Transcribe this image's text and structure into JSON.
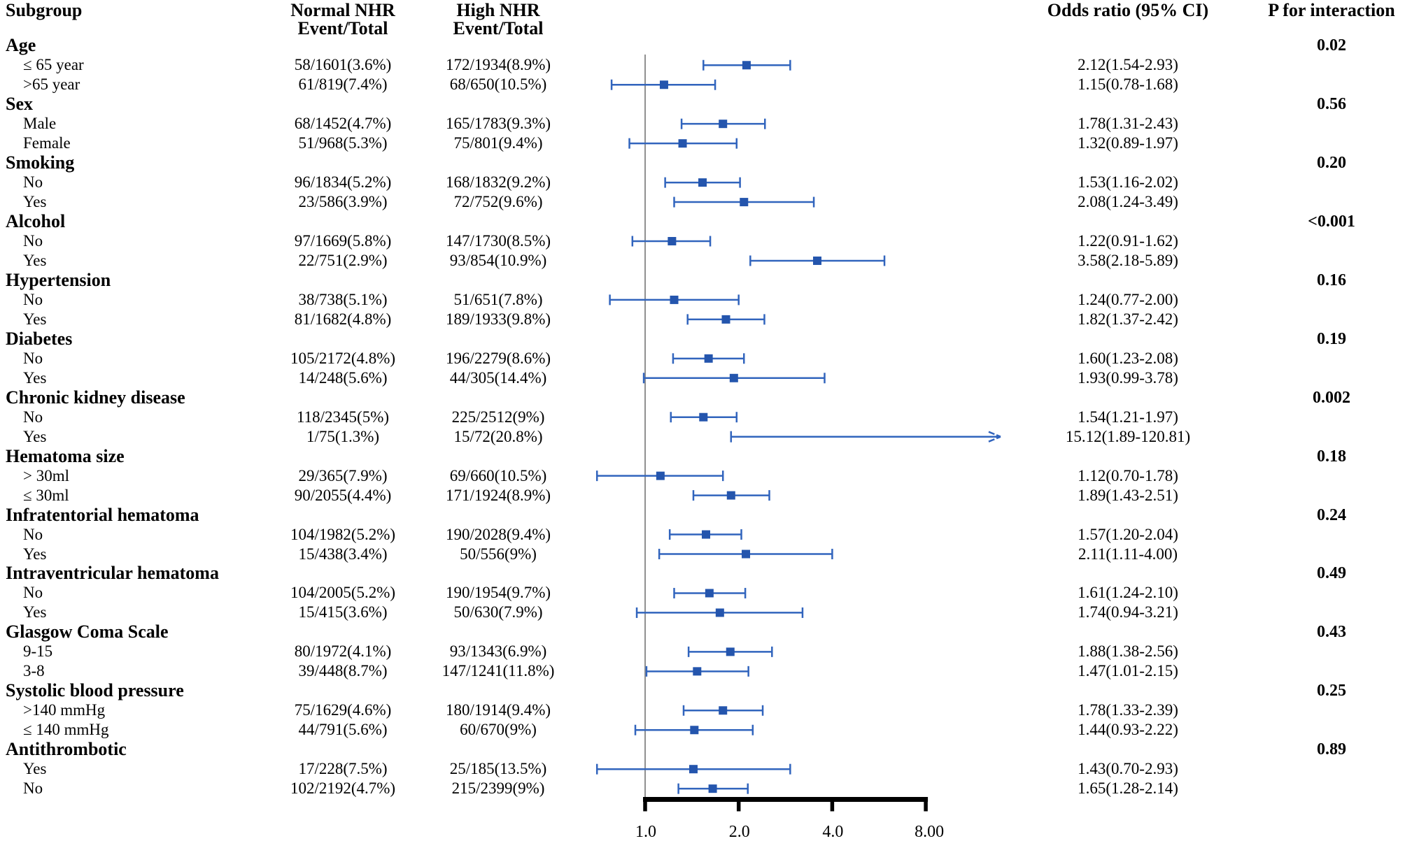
{
  "columns": {
    "subgroup": "Subgroup",
    "normal_line1": "Normal NHR",
    "normal_line2": "Event/Total",
    "high_line1": "High NHR",
    "high_line2": "Event/Total",
    "or": "Odds ratio (95% CI)",
    "p": "P for interaction"
  },
  "colors": {
    "marker": "#2455ad",
    "line": "#3164bd",
    "ref_line": "#909090",
    "axis": "#000000",
    "text": "#000000"
  },
  "chart_data": {
    "type": "forest",
    "x_axis": {
      "scale": "log2",
      "ticks": [
        1.0,
        2.0,
        4.0,
        8.0
      ],
      "tick_labels": [
        "1.0",
        "2.0",
        "4.0",
        "8.00"
      ],
      "ref_line": 1.0,
      "range": [
        1.0,
        8.0
      ]
    },
    "groups": [
      {
        "label": "Age",
        "p": "0.02",
        "items": [
          {
            "label": "≤ 65 year",
            "normal": "58/1601(3.6%)",
            "high": "172/1934(8.9%)",
            "or": 2.12,
            "lo": 1.54,
            "hi": 2.93,
            "or_text": "2.12(1.54-2.93)"
          },
          {
            "label": ">65 year",
            "normal": "61/819(7.4%)",
            "high": "68/650(10.5%)",
            "or": 1.15,
            "lo": 0.78,
            "hi": 1.68,
            "or_text": "1.15(0.78-1.68)"
          }
        ]
      },
      {
        "label": "Sex",
        "p": "0.56",
        "items": [
          {
            "label": "Male",
            "normal": "68/1452(4.7%)",
            "high": "165/1783(9.3%)",
            "or": 1.78,
            "lo": 1.31,
            "hi": 2.43,
            "or_text": "1.78(1.31-2.43)"
          },
          {
            "label": "Female",
            "normal": "51/968(5.3%)",
            "high": "75/801(9.4%)",
            "or": 1.32,
            "lo": 0.89,
            "hi": 1.97,
            "or_text": "1.32(0.89-1.97)"
          }
        ]
      },
      {
        "label": "Smoking",
        "p": "0.20",
        "items": [
          {
            "label": "No",
            "normal": "96/1834(5.2%)",
            "high": "168/1832(9.2%)",
            "or": 1.53,
            "lo": 1.16,
            "hi": 2.02,
            "or_text": "1.53(1.16-2.02)"
          },
          {
            "label": "Yes",
            "normal": "23/586(3.9%)",
            "high": "72/752(9.6%)",
            "or": 2.08,
            "lo": 1.24,
            "hi": 3.49,
            "or_text": "2.08(1.24-3.49)"
          }
        ]
      },
      {
        "label": "Alcohol",
        "p": "<0.001",
        "items": [
          {
            "label": "No",
            "normal": "97/1669(5.8%)",
            "high": "147/1730(8.5%)",
            "or": 1.22,
            "lo": 0.91,
            "hi": 1.62,
            "or_text": "1.22(0.91-1.62)"
          },
          {
            "label": "Yes",
            "normal": "22/751(2.9%)",
            "high": "93/854(10.9%)",
            "or": 3.58,
            "lo": 2.18,
            "hi": 5.89,
            "or_text": "3.58(2.18-5.89)"
          }
        ]
      },
      {
        "label": "Hypertension",
        "p": "0.16",
        "items": [
          {
            "label": "No",
            "normal": "38/738(5.1%)",
            "high": "51/651(7.8%)",
            "or": 1.24,
            "lo": 0.77,
            "hi": 2.0,
            "or_text": "1.24(0.77-2.00)"
          },
          {
            "label": "Yes",
            "normal": "81/1682(4.8%)",
            "high": "189/1933(9.8%)",
            "or": 1.82,
            "lo": 1.37,
            "hi": 2.42,
            "or_text": "1.82(1.37-2.42)"
          }
        ]
      },
      {
        "label": "Diabetes",
        "p": "0.19",
        "items": [
          {
            "label": "No",
            "normal": "105/2172(4.8%)",
            "high": "196/2279(8.6%)",
            "or": 1.6,
            "lo": 1.23,
            "hi": 2.08,
            "or_text": "1.60(1.23-2.08)"
          },
          {
            "label": "Yes",
            "normal": "14/248(5.6%)",
            "high": "44/305(14.4%)",
            "or": 1.93,
            "lo": 0.99,
            "hi": 3.78,
            "or_text": "1.93(0.99-3.78)"
          }
        ]
      },
      {
        "label": "Chronic kidney disease",
        "p": "0.002",
        "items": [
          {
            "label": "No",
            "normal": "118/2345(5%)",
            "high": "225/2512(9%)",
            "or": 1.54,
            "lo": 1.21,
            "hi": 1.97,
            "or_text": "1.54(1.21-1.97)"
          },
          {
            "label": "Yes",
            "normal": "1/75(1.3%)",
            "high": "15/72(20.8%)",
            "or": 15.12,
            "lo": 1.89,
            "hi": 120.81,
            "or_text": "15.12(1.89-120.81)",
            "arrow": true
          }
        ]
      },
      {
        "label": "Hematoma size",
        "p": "0.18",
        "items": [
          {
            "label": "> 30ml",
            "normal": "29/365(7.9%)",
            "high": "69/660(10.5%)",
            "or": 1.12,
            "lo": 0.7,
            "hi": 1.78,
            "or_text": "1.12(0.70-1.78)"
          },
          {
            "label": "≤ 30ml",
            "normal": "90/2055(4.4%)",
            "high": "171/1924(8.9%)",
            "or": 1.89,
            "lo": 1.43,
            "hi": 2.51,
            "or_text": "1.89(1.43-2.51)"
          }
        ]
      },
      {
        "label": "Infratentorial hematoma",
        "p": "0.24",
        "items": [
          {
            "label": "No",
            "normal": "104/1982(5.2%)",
            "high": "190/2028(9.4%)",
            "or": 1.57,
            "lo": 1.2,
            "hi": 2.04,
            "or_text": "1.57(1.20-2.04)"
          },
          {
            "label": "Yes",
            "normal": "15/438(3.4%)",
            "high": "50/556(9%)",
            "or": 2.11,
            "lo": 1.11,
            "hi": 4.0,
            "or_text": "2.11(1.11-4.00)"
          }
        ]
      },
      {
        "label": "Intraventricular hematoma",
        "p": "0.49",
        "items": [
          {
            "label": "No",
            "normal": "104/2005(5.2%)",
            "high": "190/1954(9.7%)",
            "or": 1.61,
            "lo": 1.24,
            "hi": 2.1,
            "or_text": "1.61(1.24-2.10)"
          },
          {
            "label": "Yes",
            "normal": "15/415(3.6%)",
            "high": "50/630(7.9%)",
            "or": 1.74,
            "lo": 0.94,
            "hi": 3.21,
            "or_text": "1.74(0.94-3.21)"
          }
        ]
      },
      {
        "label": "Glasgow Coma Scale",
        "p": "0.43",
        "items": [
          {
            "label": "9-15",
            "normal": "80/1972(4.1%)",
            "high": "93/1343(6.9%)",
            "or": 1.88,
            "lo": 1.38,
            "hi": 2.56,
            "or_text": "1.88(1.38-2.56)"
          },
          {
            "label": "3-8",
            "normal": "39/448(8.7%)",
            "high": "147/1241(11.8%)",
            "or": 1.47,
            "lo": 1.01,
            "hi": 2.15,
            "or_text": "1.47(1.01-2.15)"
          }
        ]
      },
      {
        "label": "Systolic blood pressure",
        "p": "0.25",
        "items": [
          {
            "label": ">140 mmHg",
            "normal": "75/1629(4.6%)",
            "high": "180/1914(9.4%)",
            "or": 1.78,
            "lo": 1.33,
            "hi": 2.39,
            "or_text": "1.78(1.33-2.39)"
          },
          {
            "label": "≤ 140 mmHg",
            "normal": "44/791(5.6%)",
            "high": "60/670(9%)",
            "or": 1.44,
            "lo": 0.93,
            "hi": 2.22,
            "or_text": "1.44(0.93-2.22)"
          }
        ]
      },
      {
        "label": "Antithrombotic",
        "p": "0.89",
        "items": [
          {
            "label": "Yes",
            "normal": "17/228(7.5%)",
            "high": "25/185(13.5%)",
            "or": 1.43,
            "lo": 0.7,
            "hi": 2.93,
            "or_text": "1.43(0.70-2.93)"
          },
          {
            "label": "No",
            "normal": "102/2192(4.7%)",
            "high": "215/2399(9%)",
            "or": 1.65,
            "lo": 1.28,
            "hi": 2.14,
            "or_text": "1.65(1.28-2.14)"
          }
        ]
      }
    ]
  }
}
